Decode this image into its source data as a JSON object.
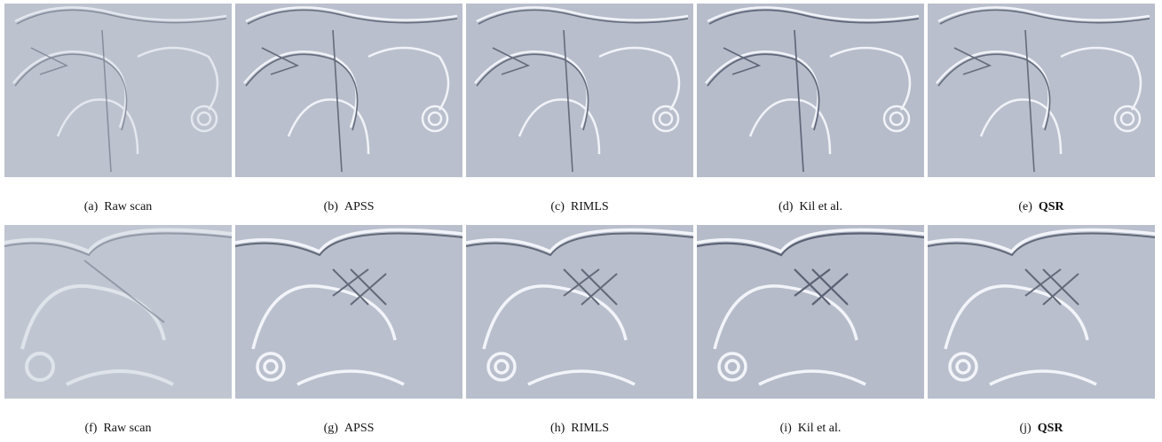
{
  "figure": {
    "rows": [
      {
        "panels": [
          {
            "letter": "(a)",
            "label": "Raw scan",
            "bold": false
          },
          {
            "letter": "(b)",
            "label": "APSS",
            "bold": false
          },
          {
            "letter": "(c)",
            "label": "RIMLS",
            "bold": false
          },
          {
            "letter": "(d)",
            "label": "Kil et al.",
            "bold": false
          },
          {
            "letter": "(e)",
            "label": "QSR",
            "bold": true
          }
        ]
      },
      {
        "panels": [
          {
            "letter": "(f)",
            "label": "Raw scan",
            "bold": false
          },
          {
            "letter": "(g)",
            "label": "APSS",
            "bold": false
          },
          {
            "letter": "(h)",
            "label": "RIMLS",
            "bold": false
          },
          {
            "letter": "(i)",
            "label": "Kil et al.",
            "bold": false
          },
          {
            "letter": "(j)",
            "label": "QSR",
            "bold": true
          }
        ]
      }
    ]
  },
  "colors": {
    "surface": "#b9bfcc",
    "highlight": "#eef1f7",
    "shadow": "#6f7686"
  }
}
